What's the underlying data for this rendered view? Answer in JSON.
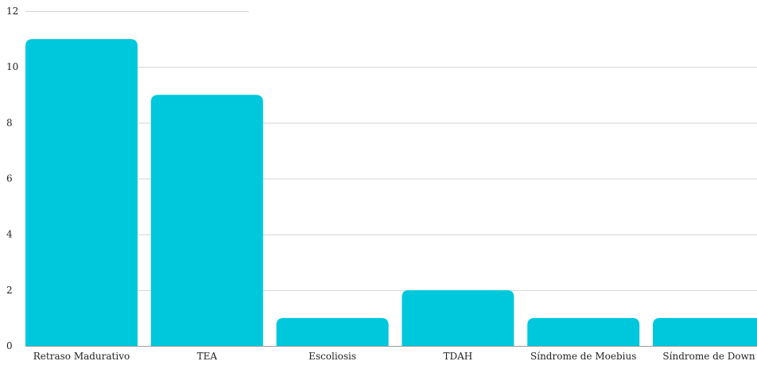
{
  "chart_data": {
    "type": "bar",
    "title": "",
    "xlabel": "",
    "ylabel": "",
    "categories": [
      "Retraso Madurativo",
      "TEA",
      "Escoliosis",
      "TDAH",
      "Síndrome de Moebius",
      "Síndrome de Down"
    ],
    "values": [
      11,
      9,
      1,
      2,
      1,
      1
    ],
    "ylim": [
      0,
      12
    ],
    "yticks": [
      "0",
      "2",
      "4",
      "6",
      "8",
      "10",
      "12"
    ],
    "grid": true,
    "legend": "none",
    "bar_color": "#00c8dc",
    "grid_color": "#d4d4d4"
  }
}
